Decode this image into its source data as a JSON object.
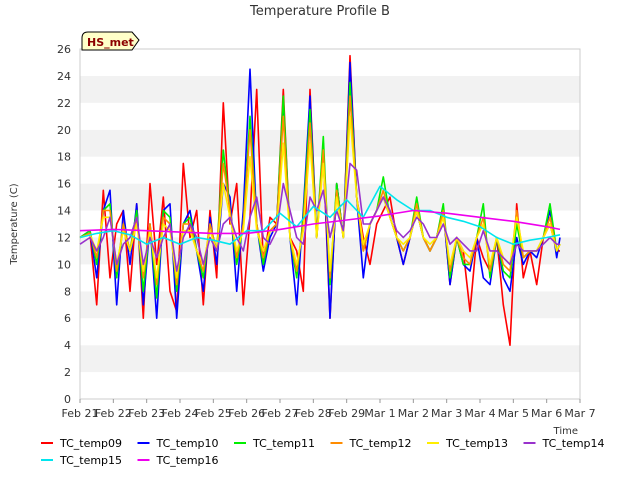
{
  "chart_data": {
    "type": "line",
    "title": "Temperature Profile B",
    "xlabel": "Time",
    "ylabel": "Temperature (C)",
    "ylim": [
      0,
      26
    ],
    "yticks": [
      0,
      2,
      4,
      6,
      8,
      10,
      12,
      14,
      16,
      18,
      20,
      22,
      24,
      26
    ],
    "xticks": [
      "Feb 21",
      "Feb 22",
      "Feb 23",
      "Feb 24",
      "Feb 25",
      "Feb 26",
      "Feb 27",
      "Feb 28",
      "Feb 29",
      "Mar 1",
      "Mar 2",
      "Mar 3",
      "Mar 4",
      "Mar 5",
      "Mar 6",
      "Mar 7"
    ],
    "x_unit": "days after Feb 21",
    "xlim": [
      0,
      15
    ],
    "grid": "horizontal bands",
    "legend_position": "bottom",
    "badge": "HS_met",
    "series": [
      {
        "name": "TC_temp09",
        "color": "#ff0000",
        "x": [
          0,
          0.3,
          0.5,
          0.7,
          0.9,
          1.1,
          1.3,
          1.5,
          1.7,
          1.9,
          2.1,
          2.3,
          2.5,
          2.7,
          2.9,
          3.1,
          3.3,
          3.5,
          3.7,
          3.9,
          4.1,
          4.3,
          4.5,
          4.7,
          4.9,
          5.1,
          5.3,
          5.5,
          5.7,
          5.9,
          6.1,
          6.3,
          6.5,
          6.7,
          6.9,
          7.1,
          7.3,
          7.5,
          7.7,
          7.9,
          8.1,
          8.3,
          8.5,
          8.7,
          8.9,
          9.1,
          9.3,
          9.5,
          9.7,
          9.9,
          10.1,
          10.3,
          10.5,
          10.7,
          10.9,
          11.1,
          11.3,
          11.5,
          11.7,
          11.9,
          12.1,
          12.3,
          12.5,
          12.7,
          12.9,
          13.1,
          13.3,
          13.5,
          13.7,
          13.9,
          14.1,
          14.3,
          14.4
        ],
        "y": [
          12,
          12.3,
          7,
          15.5,
          9,
          13,
          14,
          8,
          14.5,
          6,
          16,
          10,
          15,
          8,
          6.5,
          17.5,
          12,
          14,
          7,
          14,
          9,
          22,
          13,
          16,
          7,
          13.5,
          23,
          10,
          13.5,
          13,
          23,
          12,
          11,
          8,
          23,
          12,
          18,
          6,
          16,
          12,
          25.5,
          15,
          12,
          10,
          13,
          14,
          15,
          12,
          10,
          12,
          14,
          12,
          11,
          12,
          14,
          8.5,
          12,
          11,
          6.5,
          12,
          10.5,
          9.5,
          12,
          7,
          4,
          14.5,
          9,
          11,
          8.5,
          12,
          13,
          11,
          11
        ]
      },
      {
        "name": "TC_temp10",
        "color": "#0000ff",
        "x": [
          0,
          0.3,
          0.5,
          0.7,
          0.9,
          1.1,
          1.3,
          1.5,
          1.7,
          1.9,
          2.1,
          2.3,
          2.5,
          2.7,
          2.9,
          3.1,
          3.3,
          3.5,
          3.7,
          3.9,
          4.1,
          4.3,
          4.5,
          4.7,
          4.9,
          5.1,
          5.3,
          5.5,
          5.7,
          5.9,
          6.1,
          6.3,
          6.5,
          6.7,
          6.9,
          7.1,
          7.3,
          7.5,
          7.7,
          7.9,
          8.1,
          8.3,
          8.5,
          8.7,
          8.9,
          9.1,
          9.3,
          9.5,
          9.7,
          9.9,
          10.1,
          10.3,
          10.5,
          10.7,
          10.9,
          11.1,
          11.3,
          11.5,
          11.7,
          11.9,
          12.1,
          12.3,
          12.5,
          12.7,
          12.9,
          13.1,
          13.3,
          13.5,
          13.7,
          13.9,
          14.1,
          14.3,
          14.4
        ],
        "y": [
          12,
          12.5,
          9,
          14,
          15.5,
          7,
          14,
          10,
          14.5,
          7,
          13,
          6,
          14,
          14.5,
          6,
          13,
          14,
          11,
          8,
          13.5,
          10,
          16,
          15,
          8,
          14,
          24.5,
          13,
          9.5,
          12,
          13,
          22,
          12,
          7,
          14,
          22.5,
          12,
          19,
          6,
          16,
          12,
          25,
          15,
          9,
          13,
          14,
          15,
          13.5,
          12,
          10,
          12,
          14,
          12,
          11,
          12,
          14,
          8.5,
          12,
          10,
          9.5,
          12,
          9,
          8.5,
          12,
          9,
          8,
          12,
          10,
          11,
          10.5,
          12,
          14,
          10.5,
          12
        ]
      },
      {
        "name": "TC_temp11",
        "color": "#00ee00",
        "x": [
          0,
          0.3,
          0.5,
          0.7,
          0.9,
          1.1,
          1.3,
          1.5,
          1.7,
          1.9,
          2.1,
          2.3,
          2.5,
          2.7,
          2.9,
          3.1,
          3.3,
          3.5,
          3.7,
          3.9,
          4.1,
          4.3,
          4.5,
          4.7,
          4.9,
          5.1,
          5.3,
          5.5,
          5.7,
          5.9,
          6.1,
          6.3,
          6.5,
          6.7,
          6.9,
          7.1,
          7.3,
          7.5,
          7.7,
          7.9,
          8.1,
          8.3,
          8.5,
          8.7,
          8.9,
          9.1,
          9.3,
          9.5,
          9.7,
          9.9,
          10.1,
          10.3,
          10.5,
          10.7,
          10.9,
          11.1,
          11.3,
          11.5,
          11.7,
          11.9,
          12.1,
          12.3,
          12.5,
          12.7,
          12.9,
          13.1,
          13.3,
          13.5,
          13.7,
          13.9,
          14.1,
          14.3,
          14.4
        ],
        "y": [
          12,
          12.5,
          10,
          14,
          14.5,
          9,
          13,
          11,
          14,
          8,
          13,
          7.5,
          14,
          13.5,
          8,
          13,
          13.5,
          11,
          9,
          13,
          11,
          18.5,
          14,
          10,
          13,
          21,
          13,
          10,
          12.5,
          13,
          22.5,
          12,
          9,
          13.5,
          21.5,
          12,
          19.5,
          8.5,
          16,
          12,
          23.5,
          15,
          11,
          13,
          14,
          16.5,
          13.5,
          12,
          11,
          12,
          15,
          12,
          11,
          12,
          14.5,
          9,
          12,
          10,
          10,
          12,
          14.5,
          9,
          12,
          9.5,
          9,
          13,
          10.5,
          11,
          11,
          12,
          14.5,
          11,
          11.5
        ]
      },
      {
        "name": "TC_temp12",
        "color": "#ff8c00",
        "x": [
          0,
          0.3,
          0.5,
          0.7,
          0.9,
          1.1,
          1.3,
          1.5,
          1.7,
          1.9,
          2.1,
          2.3,
          2.5,
          2.7,
          2.9,
          3.1,
          3.3,
          3.5,
          3.7,
          3.9,
          4.1,
          4.3,
          4.5,
          4.7,
          4.9,
          5.1,
          5.3,
          5.5,
          5.7,
          5.9,
          6.1,
          6.3,
          6.5,
          6.7,
          6.9,
          7.1,
          7.3,
          7.5,
          7.7,
          7.9,
          8.1,
          8.3,
          8.5,
          8.7,
          8.9,
          9.1,
          9.3,
          9.5,
          9.7,
          9.9,
          10.1,
          10.3,
          10.5,
          10.7,
          10.9,
          11.1,
          11.3,
          11.5,
          11.7,
          11.9,
          12.1,
          12.3,
          12.5,
          12.7,
          12.9,
          13.1,
          13.3,
          13.5,
          13.7,
          13.9,
          14.1,
          14.3,
          14.4
        ],
        "y": [
          12,
          12.3,
          10.5,
          14,
          14,
          9.5,
          13,
          11,
          13.5,
          9,
          13,
          8.5,
          13.5,
          13,
          8.5,
          13,
          13,
          11,
          9.5,
          13,
          11,
          17.5,
          14,
          10.5,
          13,
          20,
          13,
          10.5,
          12.5,
          13,
          21,
          12,
          9.5,
          13,
          20.5,
          12,
          18.5,
          9,
          15.5,
          12,
          22.5,
          15,
          11,
          13,
          14,
          15.5,
          13.5,
          12,
          11,
          12,
          14.5,
          12,
          11,
          12,
          14,
          9.5,
          12,
          10.5,
          10,
          12,
          13.5,
          9.5,
          12,
          10,
          9.5,
          14,
          10.5,
          11,
          11,
          12,
          13.5,
          11,
          11.5
        ]
      },
      {
        "name": "TC_temp13",
        "color": "#ffee00",
        "x": [
          0,
          0.3,
          0.5,
          0.7,
          0.9,
          1.1,
          1.3,
          1.5,
          1.7,
          1.9,
          2.1,
          2.3,
          2.5,
          2.7,
          2.9,
          3.1,
          3.3,
          3.5,
          3.7,
          3.9,
          4.1,
          4.3,
          4.5,
          4.7,
          4.9,
          5.1,
          5.3,
          5.5,
          5.7,
          5.9,
          6.1,
          6.3,
          6.5,
          6.7,
          6.9,
          7.1,
          7.3,
          7.5,
          7.7,
          7.9,
          8.1,
          8.3,
          8.5,
          8.7,
          8.9,
          9.1,
          9.3,
          9.5,
          9.7,
          9.9,
          10.1,
          10.3,
          10.5,
          10.7,
          10.9,
          11.1,
          11.3,
          11.5,
          11.7,
          11.9,
          12.1,
          12.3,
          12.5,
          12.7,
          12.9,
          13.1,
          13.3,
          13.5,
          13.7,
          13.9,
          14.1,
          14.3,
          14.4
        ],
        "y": [
          12,
          12.2,
          11,
          13.5,
          13.5,
          10,
          12.5,
          11,
          13,
          9.5,
          12.5,
          9,
          13,
          12.5,
          9,
          12.5,
          12.5,
          11,
          10,
          12.5,
          11,
          16,
          13.5,
          11,
          12.5,
          18,
          12.5,
          11,
          12.5,
          12.5,
          19,
          12,
          10,
          12.5,
          19,
          12,
          17.5,
          9.5,
          15,
          12,
          21,
          15,
          11.5,
          13,
          14,
          15,
          13.5,
          12,
          11.5,
          12,
          14,
          12,
          11.5,
          12,
          13.5,
          10,
          12,
          11,
          10.5,
          12,
          13,
          10,
          12,
          10.5,
          10,
          13.5,
          11,
          11,
          11,
          12,
          13,
          11,
          11.5
        ]
      },
      {
        "name": "TC_temp14",
        "color": "#9932cc",
        "x": [
          0,
          0.3,
          0.5,
          0.7,
          0.9,
          1.1,
          1.3,
          1.5,
          1.7,
          1.9,
          2.1,
          2.3,
          2.5,
          2.7,
          2.9,
          3.1,
          3.3,
          3.5,
          3.7,
          3.9,
          4.1,
          4.3,
          4.5,
          4.7,
          4.9,
          5.1,
          5.3,
          5.5,
          5.7,
          5.9,
          6.1,
          6.3,
          6.5,
          6.7,
          6.9,
          7.1,
          7.3,
          7.5,
          7.7,
          7.9,
          8.1,
          8.3,
          8.5,
          8.7,
          8.9,
          9.1,
          9.3,
          9.5,
          9.7,
          9.9,
          10.1,
          10.3,
          10.5,
          10.7,
          10.9,
          11.1,
          11.3,
          11.5,
          11.7,
          11.9,
          12.1,
          12.3,
          12.5,
          12.7,
          12.9,
          13.1,
          13.3,
          13.5,
          13.7,
          13.9,
          14.1,
          14.3,
          14.4
        ],
        "y": [
          11.5,
          12,
          11,
          12,
          13.5,
          10,
          11.5,
          12,
          13.5,
          10,
          12,
          10.5,
          12,
          13,
          9.5,
          12,
          13,
          12,
          10,
          12,
          11,
          13,
          13.5,
          12,
          11,
          13.5,
          15,
          12,
          11.5,
          12.5,
          16,
          14,
          12,
          11.5,
          15,
          14,
          15.5,
          12,
          14,
          12.5,
          17.5,
          17,
          13,
          13,
          14,
          15,
          14,
          12.5,
          12,
          12.5,
          13.5,
          13,
          12,
          12,
          13,
          11.5,
          12,
          11.5,
          11,
          11,
          12.5,
          11,
          11,
          10.5,
          10,
          11.5,
          11,
          11,
          11,
          11.5,
          12,
          11.5,
          11.5
        ]
      },
      {
        "name": "TC_temp15",
        "color": "#00e5ee",
        "x": [
          0,
          0.5,
          1,
          1.5,
          2,
          2.5,
          3,
          3.5,
          4,
          4.5,
          5,
          5.5,
          6,
          6.5,
          7,
          7.5,
          8,
          8.5,
          9,
          9.5,
          10,
          10.5,
          11,
          11.5,
          12,
          12.5,
          13,
          13.5,
          14,
          14.4
        ],
        "y": [
          12,
          12.3,
          12.5,
          12.2,
          11.5,
          12,
          11.5,
          12,
          11.8,
          11.5,
          12.5,
          12.5,
          13.8,
          12.8,
          14.3,
          13.5,
          14.8,
          13.5,
          15.8,
          14.8,
          14,
          14,
          13.5,
          13.2,
          12.8,
          12,
          11.5,
          11.8,
          12,
          12.2
        ]
      },
      {
        "name": "TC_temp16",
        "color": "#ee00ee",
        "x": [
          0,
          1,
          2,
          3,
          4,
          5,
          6,
          7,
          8,
          9,
          10,
          11,
          12,
          13,
          14,
          14.4
        ],
        "y": [
          12.5,
          12.6,
          12.5,
          12.4,
          12.3,
          12.3,
          12.6,
          13,
          13.3,
          13.6,
          14,
          13.8,
          13.5,
          13.2,
          12.8,
          12.6
        ]
      }
    ]
  }
}
